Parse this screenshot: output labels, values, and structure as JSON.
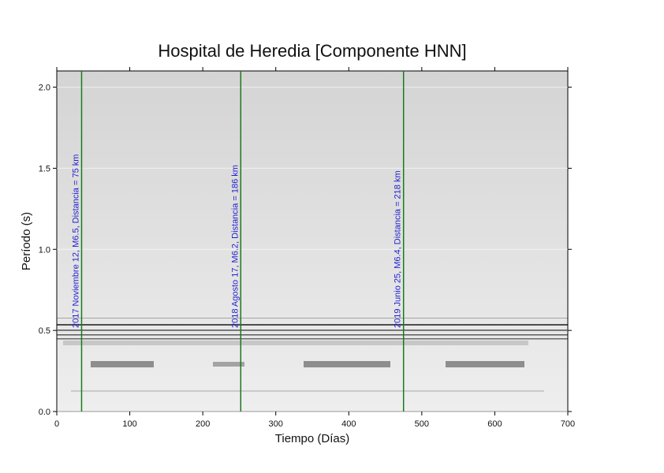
{
  "chart_data": {
    "type": "spectrogram",
    "title": "Hospital de Heredia [Componente HNN]",
    "x_label": "Tiempo (Días)",
    "y_label": "Período (s)",
    "xlim": [
      0,
      700
    ],
    "xticks": [
      0,
      100,
      200,
      300,
      400,
      500,
      600,
      700
    ],
    "ylim": [
      0,
      2.1
    ],
    "yticks": [
      {
        "value": 0,
        "label": "0.0"
      },
      0.5,
      {
        "value": 1,
        "label": "1.0"
      },
      1.5,
      {
        "value": 2,
        "label": "2.0"
      }
    ],
    "grid": true,
    "event_color": "#1a7a1a",
    "event_label_color": "#1f1fd0",
    "events": [
      {
        "x": 34,
        "label": "2017 Noviembre 12, M6.5, Distancia = 75 km"
      },
      {
        "x": 252,
        "label": "2018 Agosto 17, M6.2, Distancia = 186 km"
      },
      {
        "x": 475,
        "label": "2019 Junio 25, M6.4, Distancia = 218 km"
      }
    ]
  }
}
